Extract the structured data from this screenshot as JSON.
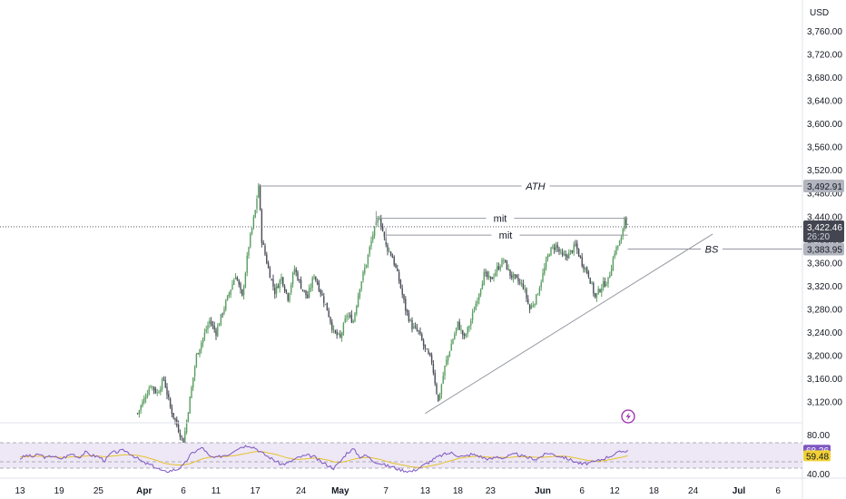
{
  "currency_label": "USD",
  "colors": {
    "up": "#5a9e62",
    "down": "#4a4e57",
    "rsi": "#7e57c2",
    "rsi_ma": "#e6c229",
    "rsi_band": "#ede7f6",
    "line": "#9598a1",
    "tag_gray": "#b2b5be",
    "tag_dark": "#434651",
    "tag_purple": "#7e57c2",
    "tag_yellow": "#f2d136",
    "energy_icon": "#9c27b0"
  },
  "chart_data": [
    {
      "type": "candlestick",
      "title": "",
      "currency": "USD",
      "ylim": [
        3080,
        3790
      ],
      "y_ticks": [
        3120,
        3160,
        3200,
        3240,
        3280,
        3320,
        3360,
        3400,
        3440,
        3480,
        3520,
        3560,
        3600,
        3640,
        3680,
        3720,
        3760
      ],
      "y_tick_labels": [
        "3,120.00",
        "3,160.00",
        "3,200.00",
        "3,240.00",
        "3,280.00",
        "3,320.00",
        "3,360.00",
        "3,400.00",
        "3,440.00",
        "3,480.00",
        "3,520.00",
        "3,560.00",
        "3,600.00",
        "3,640.00",
        "3,680.00",
        "3,720.00",
        "3,760.00"
      ],
      "x_labels": [
        "13",
        "19",
        "25",
        "Apr",
        "6",
        "11",
        "17",
        "24",
        "May",
        "7",
        "13",
        "18",
        "23",
        "Jun",
        "6",
        "12",
        "18",
        "24",
        "Jul",
        "6"
      ],
      "x_label_days": [
        0,
        6,
        12,
        19,
        25,
        30,
        36,
        43,
        49,
        56,
        62,
        67,
        72,
        80,
        86,
        91,
        97,
        103,
        110,
        116
      ],
      "axis_start_date": "Mar 13",
      "close_path": [
        [
          18,
          3100
        ],
        [
          20,
          3150
        ],
        [
          21,
          3135
        ],
        [
          22,
          3160
        ],
        [
          23,
          3110
        ],
        [
          25,
          3050
        ],
        [
          27,
          3200
        ],
        [
          29,
          3260
        ],
        [
          30,
          3240
        ],
        [
          31,
          3275
        ],
        [
          33,
          3340
        ],
        [
          34,
          3300
        ],
        [
          35,
          3390
        ],
        [
          36,
          3450
        ],
        [
          36.5,
          3495
        ],
        [
          37,
          3400
        ],
        [
          38,
          3350
        ],
        [
          39,
          3310
        ],
        [
          40,
          3335
        ],
        [
          41,
          3300
        ],
        [
          42,
          3350
        ],
        [
          43,
          3320
        ],
        [
          44,
          3300
        ],
        [
          45,
          3340
        ],
        [
          46,
          3310
        ],
        [
          47,
          3280
        ],
        [
          48,
          3240
        ],
        [
          49,
          3230
        ],
        [
          50,
          3270
        ],
        [
          51,
          3260
        ],
        [
          52,
          3320
        ],
        [
          53,
          3360
        ],
        [
          54,
          3410
        ],
        [
          55,
          3440
        ],
        [
          56,
          3390
        ],
        [
          57,
          3370
        ],
        [
          58,
          3330
        ],
        [
          59,
          3280
        ],
        [
          60,
          3250
        ],
        [
          61,
          3240
        ],
        [
          62,
          3210
        ],
        [
          63,
          3190
        ],
        [
          64,
          3120
        ],
        [
          65,
          3180
        ],
        [
          66,
          3220
        ],
        [
          67,
          3255
        ],
        [
          68,
          3230
        ],
        [
          69,
          3260
        ],
        [
          70,
          3300
        ],
        [
          71,
          3340
        ],
        [
          72,
          3330
        ],
        [
          73,
          3350
        ],
        [
          74,
          3365
        ],
        [
          75,
          3340
        ],
        [
          76,
          3330
        ],
        [
          77,
          3320
        ],
        [
          78,
          3280
        ],
        [
          79,
          3300
        ],
        [
          80,
          3340
        ],
        [
          81,
          3380
        ],
        [
          82,
          3390
        ],
        [
          83,
          3370
        ],
        [
          84,
          3375
        ],
        [
          85,
          3390
        ],
        [
          86,
          3360
        ],
        [
          87,
          3340
        ],
        [
          88,
          3300
        ],
        [
          89,
          3320
        ],
        [
          90,
          3330
        ],
        [
          91,
          3380
        ],
        [
          92,
          3400
        ],
        [
          92.5,
          3440
        ],
        [
          93,
          3422.46
        ]
      ],
      "annotations": [
        {
          "label": "ATH",
          "value": 3492.91
        },
        {
          "label": "mit",
          "value": 3437
        },
        {
          "label": "mit",
          "value": 3408
        },
        {
          "label": "BS",
          "value": 3383.95
        }
      ],
      "trendline": [
        [
          62,
          3100
        ],
        [
          106,
          3410
        ]
      ],
      "price_tags": [
        {
          "text": "3,492.91",
          "style": "gray"
        },
        {
          "text": "3,422.46",
          "sub": "26:20",
          "style": "dark"
        },
        {
          "text": "3,383.95",
          "style": "gray"
        }
      ]
    },
    {
      "type": "line",
      "title": "",
      "ylim": [
        25,
        100
      ],
      "band": [
        40,
        80
      ],
      "y_tick_labels": [
        "80.00",
        "40.00"
      ],
      "series_values": [
        {
          "name": "",
          "values": [
            55,
            60,
            58,
            62,
            56,
            60,
            54,
            58,
            63,
            57,
            65,
            60,
            58,
            52,
            64,
            66,
            68,
            62,
            55,
            48,
            45,
            40,
            34,
            36,
            38,
            44,
            60,
            68,
            72,
            58,
            56,
            60,
            62,
            70,
            74,
            76,
            72,
            64,
            58,
            52,
            46,
            48,
            54,
            58,
            60,
            58,
            50,
            45,
            40,
            50,
            64,
            70,
            58,
            60,
            52,
            48,
            44,
            42,
            38,
            36,
            35,
            40,
            46,
            52,
            58,
            62,
            64,
            60,
            58,
            62,
            60,
            56,
            54,
            58,
            56,
            60,
            62,
            58,
            56,
            54,
            60,
            64,
            60,
            58,
            54,
            50,
            46,
            48,
            50,
            54,
            58,
            62,
            66,
            68.26
          ]
        },
        {
          "name": "",
          "values": [
            58,
            58,
            59,
            59,
            58,
            58,
            57,
            57,
            58,
            58,
            59,
            60,
            59,
            58,
            59,
            60,
            61,
            61,
            60,
            58,
            55,
            52,
            48,
            46,
            45,
            45,
            47,
            51,
            55,
            57,
            58,
            58,
            59,
            60,
            62,
            64,
            66,
            66,
            64,
            62,
            59,
            56,
            54,
            54,
            55,
            56,
            55,
            53,
            50,
            49,
            51,
            54,
            56,
            57,
            56,
            54,
            51,
            48,
            46,
            44,
            42,
            41,
            42,
            44,
            46,
            49,
            52,
            55,
            57,
            58,
            59,
            58,
            57,
            57,
            57,
            57,
            58,
            58,
            58,
            57,
            57,
            58,
            59,
            59,
            58,
            56,
            54,
            52,
            51,
            51,
            53,
            55,
            57,
            59.48
          ]
        }
      ],
      "value_tags": [
        {
          "text": "68.26",
          "style": "purple"
        },
        {
          "text": "59.48",
          "style": "yellow"
        }
      ]
    }
  ]
}
